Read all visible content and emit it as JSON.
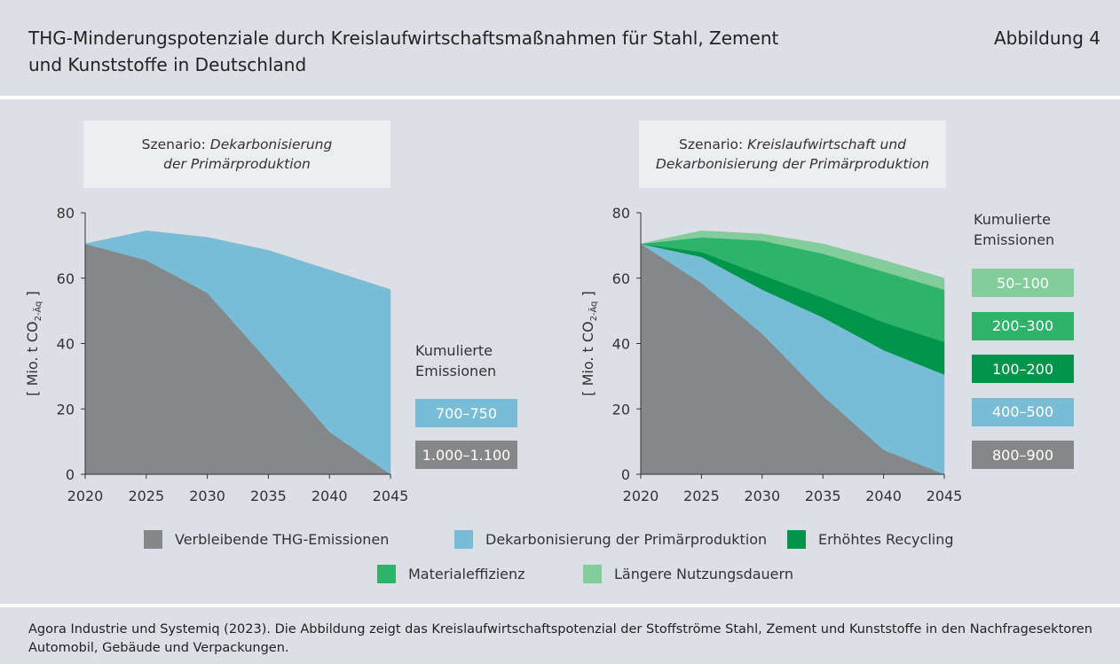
{
  "title": "THG-Minderungspotenziale durch Kreislaufwirtschaftsmaßnahmen für Stahl, Zement und Kunststoffe in Deutschland",
  "figure_label": "Abbildung 4",
  "source": "Agora Industrie und Systemiq (2023). Die Abbildung zeigt das Kreislaufwirtschaftspotenzial der Stoffströme Stahl, Zement und Kunststoffe in den Nachfragesektoren Automobil, Gebäude und Verpackungen.",
  "chart_data": [
    {
      "type": "stacked_area",
      "scenario_label": "Szenario:",
      "scenario": "Dekarbonisierung der Primärproduktion",
      "ylabel": {
        "main": "[ Mio. t CO",
        "sub": "2-Äq",
        "end": " ]"
      },
      "x": [
        2020,
        2025,
        2030,
        2035,
        2040,
        2045
      ],
      "xlim": [
        2020,
        2045
      ],
      "xticks": [
        2020,
        2025,
        2030,
        2035,
        2040,
        2045
      ],
      "ylim": [
        0,
        80
      ],
      "yticks": [
        0,
        20,
        40,
        60,
        80
      ],
      "legend_title": "Kumulierte Emissionen",
      "series": [
        {
          "name": "Verbleibende THG-Emissionen",
          "color": "#868789",
          "values": [
            70.5,
            65.5,
            55.5,
            34.5,
            13,
            0
          ],
          "cumulative": "1.000–1.100"
        },
        {
          "name": "Dekarbonisierung der Primärproduktion",
          "color": "#79bcd6",
          "values": [
            0,
            9,
            17,
            34,
            49.5,
            56.5
          ],
          "cumulative": "700–750"
        }
      ]
    },
    {
      "type": "stacked_area",
      "scenario_label": "Szenario:",
      "scenario": "Kreislaufwirtschaft und Dekarbonisierung der Primärproduktion",
      "ylabel": {
        "main": "[ Mio. t CO",
        "sub": "2-Äq",
        "end": " ]"
      },
      "x": [
        2020,
        2025,
        2030,
        2035,
        2040,
        2045
      ],
      "xlim": [
        2020,
        2045
      ],
      "xticks": [
        2020,
        2025,
        2030,
        2035,
        2040,
        2045
      ],
      "ylim": [
        0,
        80
      ],
      "yticks": [
        0,
        20,
        40,
        60,
        80
      ],
      "legend_title": "Kumulierte Emissionen",
      "series": [
        {
          "name": "Verbleibende THG-Emissionen",
          "color": "#868789",
          "values": [
            70.5,
            58.5,
            43,
            24,
            7.5,
            0
          ],
          "cumulative": "800–900"
        },
        {
          "name": "Dekarbonisierung der Primärproduktion",
          "color": "#79bcd6",
          "values": [
            0,
            8,
            13.5,
            24,
            30.5,
            30.5
          ],
          "cumulative": "400–500"
        },
        {
          "name": "Erhöhtes Recycling",
          "color": "#00954a",
          "values": [
            0,
            1.5,
            4.5,
            6,
            8.5,
            10
          ],
          "cumulative": "100–200"
        },
        {
          "name": "Materialeffizienz",
          "color": "#2db36a",
          "values": [
            0,
            4.5,
            10.5,
            13.5,
            15.5,
            16
          ],
          "cumulative": "200–300"
        },
        {
          "name": "Längere Nutzungsdauern",
          "color": "#83cc9b",
          "values": [
            0,
            2,
            2,
            3,
            3.5,
            3.5
          ],
          "cumulative": "50–100"
        }
      ]
    }
  ]
}
